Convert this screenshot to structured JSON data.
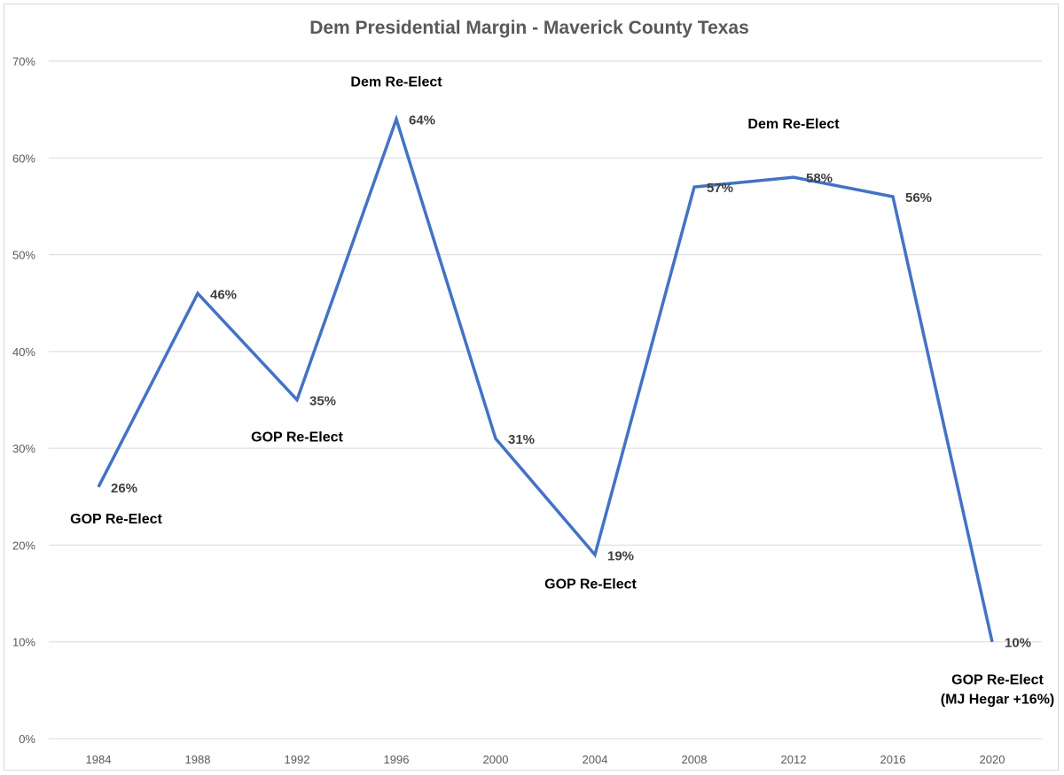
{
  "chart_data": {
    "type": "line",
    "title": "Dem Presidential Margin - Maverick County Texas",
    "xlabel": "",
    "ylabel": "",
    "categories": [
      "1984",
      "1988",
      "1992",
      "1996",
      "2000",
      "2004",
      "2008",
      "2012",
      "2016",
      "2020"
    ],
    "series": [
      {
        "values": [
          26,
          46,
          35,
          64,
          31,
          19,
          57,
          58,
          56,
          10
        ],
        "color": "#4472C4"
      }
    ],
    "data_labels": [
      "26%",
      "46%",
      "35%",
      "64%",
      "31%",
      "19%",
      "57%",
      "58%",
      "56%",
      "10%"
    ],
    "ylim": [
      0,
      70
    ],
    "yticks": [
      0,
      10,
      20,
      30,
      40,
      50,
      60,
      70
    ],
    "ytick_labels": [
      "0%",
      "10%",
      "20%",
      "30%",
      "40%",
      "50%",
      "60%",
      "70%"
    ],
    "grid": true,
    "legend": "none",
    "annotations": [
      {
        "index": 0,
        "lines": [
          "GOP Re-Elect"
        ]
      },
      {
        "index": 2,
        "lines": [
          "GOP Re-Elect"
        ]
      },
      {
        "index": 3,
        "lines": [
          "Dem Re-Elect"
        ]
      },
      {
        "index": 5,
        "lines": [
          "GOP Re-Elect"
        ]
      },
      {
        "index": 7,
        "lines": [
          "Dem Re-Elect"
        ]
      },
      {
        "index": 9,
        "lines": [
          "GOP Re-Elect",
          "(MJ Hegar +16%)"
        ]
      }
    ]
  }
}
